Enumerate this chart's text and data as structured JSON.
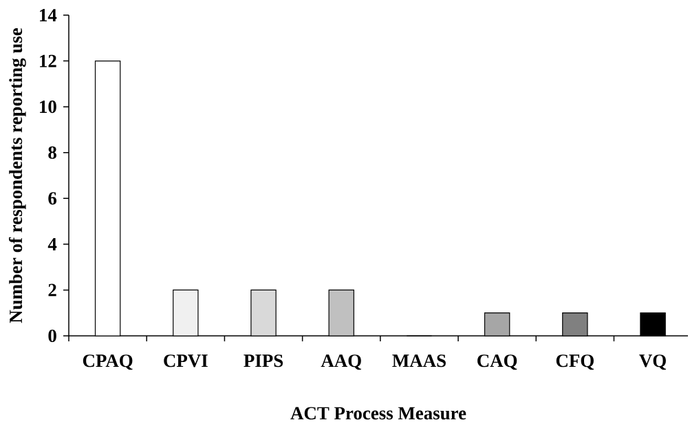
{
  "chart_data": {
    "type": "bar",
    "xlabel": "ACT Process Measure",
    "ylabel": "Number of respondents reporting use",
    "categories": [
      "CPAQ",
      "CPVI",
      "PIPS",
      "AAQ",
      "MAAS",
      "CAQ",
      "CFQ",
      "VQ"
    ],
    "values": [
      12,
      2,
      2,
      2,
      0,
      1,
      1,
      1
    ],
    "colors": [
      "#ffffff",
      "#f0f0f0",
      "#d9d9d9",
      "#c0c0c0",
      "#b3b3b3",
      "#a6a6a6",
      "#808080",
      "#000000"
    ],
    "ylim": [
      0,
      14
    ],
    "yticks": [
      0,
      2,
      4,
      6,
      8,
      10,
      12,
      14
    ]
  }
}
